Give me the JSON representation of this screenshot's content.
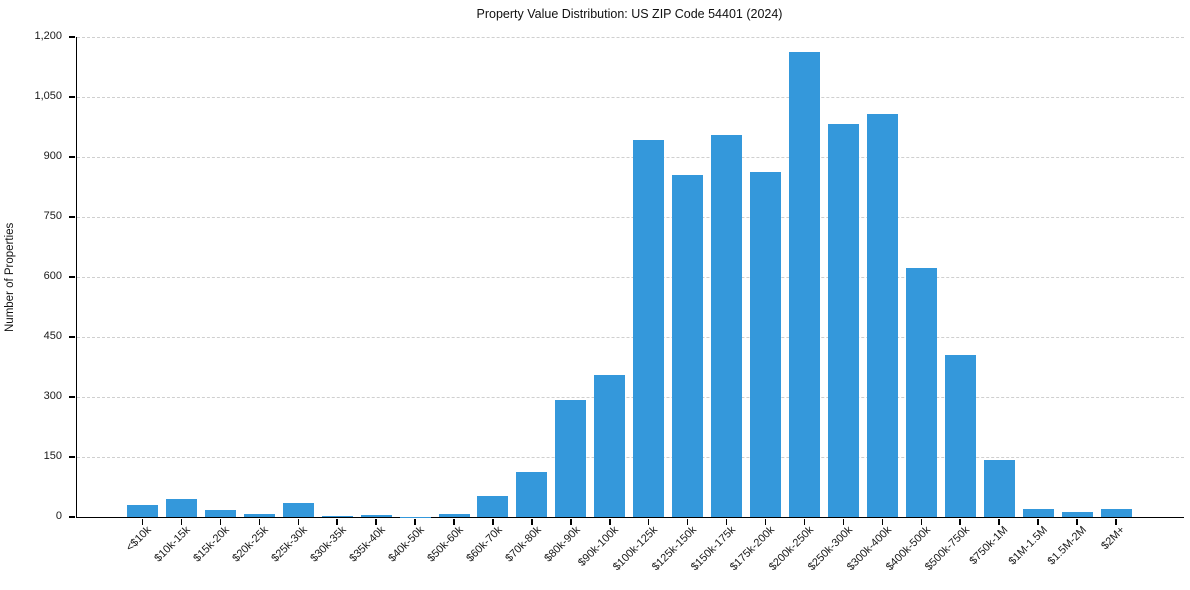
{
  "chart_data": {
    "type": "bar",
    "title": "Property Value Distribution: US ZIP Code 54401 (2024)",
    "xlabel": "",
    "ylabel": "Number of Properties",
    "categories": [
      "<$10k",
      "$10k-15k",
      "$15k-20k",
      "$20k-25k",
      "$25k-30k",
      "$30k-35k",
      "$35k-40k",
      "$40k-50k",
      "$50k-60k",
      "$60k-70k",
      "$70k-80k",
      "$80k-90k",
      "$90k-100k",
      "$100k-125k",
      "$125k-150k",
      "$150k-175k",
      "$175k-200k",
      "$200k-250k",
      "$250k-300k",
      "$300k-400k",
      "$400k-500k",
      "$500k-750k",
      "$750k-1M",
      "$1M-1.5M",
      "$1.5M-2M",
      "$2M+"
    ],
    "values": [
      30,
      45,
      17,
      8,
      34,
      2,
      6,
      1,
      8,
      53,
      113,
      292,
      355,
      943,
      856,
      954,
      862,
      1163,
      983,
      1008,
      623,
      406,
      143,
      20,
      12,
      19
    ],
    "ylim": [
      0,
      1200
    ],
    "yticks": [
      0,
      150,
      300,
      450,
      600,
      750,
      900,
      1050,
      1200
    ],
    "ytick_labels": [
      "0",
      "150",
      "300",
      "450",
      "600",
      "750",
      "900",
      "1,050",
      "1,200"
    ],
    "grid": "horizontal-dashed",
    "legend": "none",
    "bar_color": "#3498db",
    "grid_color": "#cfcfcf",
    "axis_color": "#000000",
    "background_color": "#ffffff"
  }
}
